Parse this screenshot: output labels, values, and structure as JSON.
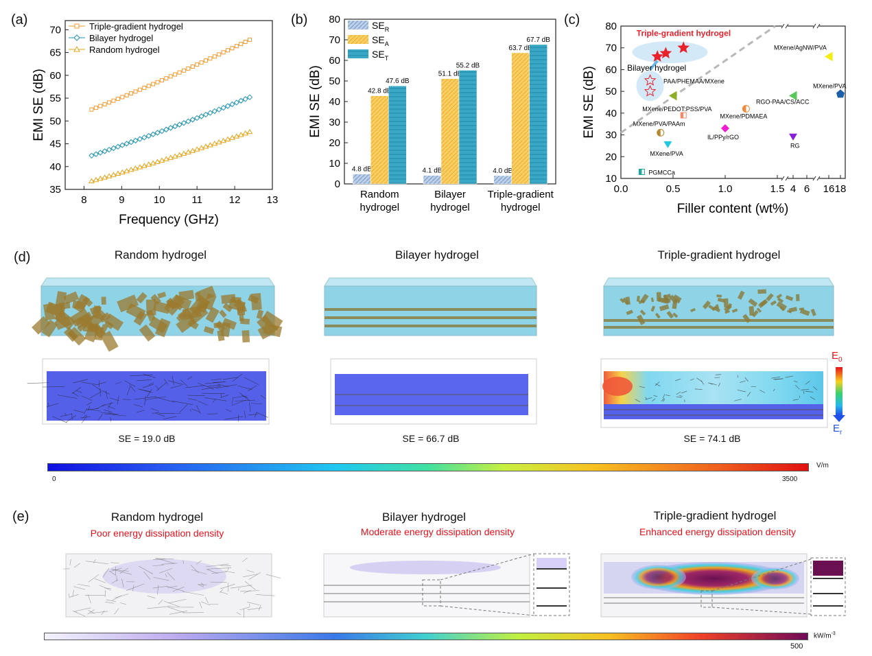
{
  "colors": {
    "triple": "#f39a2f",
    "bilayer": "#1e93ad",
    "random": "#e6a417",
    "se_r": "#7f9ec6",
    "se_a": "#f2b01e",
    "se_t": "#1f8fae",
    "hydrogel": "#8fd3e6",
    "flake": "#9b7a2e",
    "red_text": "#e8101a"
  },
  "panel_labels": {
    "a": "(a)",
    "b": "(b)",
    "c": "(c)",
    "d": "(d)",
    "e": "(e)"
  },
  "chart_data": [
    {
      "id": "a",
      "type": "line",
      "title": "",
      "xlabel": "Frequency (GHz)",
      "ylabel": "EMI SE (dB)",
      "xlim": [
        7.5,
        13
      ],
      "ylim": [
        35,
        72
      ],
      "xticks": [
        8,
        9,
        10,
        11,
        12,
        13
      ],
      "yticks": [
        35,
        40,
        45,
        50,
        55,
        60,
        65,
        70
      ],
      "legend": "top-left",
      "series": [
        {
          "name": "Triple-gradient hydrogel",
          "marker": "square",
          "color": "#f39a2f",
          "x": [
            8.2,
            12.4
          ],
          "y": [
            52.5,
            67.8
          ]
        },
        {
          "name": "Bilayer hydrogel",
          "marker": "diamond",
          "color": "#1e93ad",
          "x": [
            8.2,
            12.4
          ],
          "y": [
            42.4,
            55.2
          ]
        },
        {
          "name": "Random hydrogel",
          "marker": "triangle",
          "color": "#e6a417",
          "x": [
            8.2,
            12.4
          ],
          "y": [
            36.8,
            47.6
          ]
        }
      ]
    },
    {
      "id": "b",
      "type": "bar",
      "title": "",
      "xlabel": "",
      "ylabel": "EMI SE (dB)",
      "ylim": [
        0,
        80
      ],
      "yticks": [
        0,
        10,
        20,
        30,
        40,
        50,
        60,
        70,
        80
      ],
      "legend": "top-left",
      "categories": [
        [
          "Random",
          "hydrogel"
        ],
        [
          "Bilayer",
          "hydrogel"
        ],
        [
          "Triple-gradient",
          "hydrogel"
        ]
      ],
      "series": [
        {
          "name": "SE",
          "sub": "R",
          "values": [
            4.8,
            4.1,
            4.0
          ],
          "labels": [
            "4.8 dB",
            "4.1 dB",
            "4.0 dB"
          ]
        },
        {
          "name": "SE",
          "sub": "A",
          "values": [
            42.8,
            51.1,
            63.7
          ],
          "labels": [
            "42.8 dB",
            "51.1 dB",
            "63.7 dB"
          ]
        },
        {
          "name": "SE",
          "sub": "T",
          "values": [
            47.6,
            55.2,
            67.7
          ],
          "labels": [
            "47.6 dB",
            "55.2 dB",
            "67.7 dB"
          ]
        }
      ]
    },
    {
      "id": "c",
      "type": "scatter",
      "title": "",
      "xlabel": "Filler content (wt%)",
      "ylabel": "EMI SE (dB)",
      "ylim": [
        10,
        80
      ],
      "yticks": [
        10,
        20,
        30,
        40,
        50,
        60,
        70,
        80
      ],
      "xtick_labels": [
        "0.0",
        "0.5",
        "1.0",
        "1.5",
        "4",
        "6",
        "16",
        "18"
      ],
      "broken_x_axis": true,
      "group_labels": {
        "triple": "Triple-gradient hydrogel",
        "bilayer": "Bilayer hydrogel"
      },
      "points": [
        {
          "label": "",
          "x": 0.35,
          "y": 66,
          "marker": "star-filled",
          "color": "#e8212b",
          "group": "triple"
        },
        {
          "label": "",
          "x": 0.43,
          "y": 67.5,
          "marker": "star-filled",
          "color": "#e8212b",
          "group": "triple"
        },
        {
          "label": "",
          "x": 0.6,
          "y": 70,
          "marker": "star-filled",
          "color": "#e8212b",
          "group": "triple"
        },
        {
          "label": "",
          "x": 0.28,
          "y": 55,
          "marker": "star-open",
          "color": "#e8212b",
          "group": "bilayer"
        },
        {
          "label": "",
          "x": 0.28,
          "y": 50,
          "marker": "star-open",
          "color": "#e8212b",
          "group": "bilayer"
        },
        {
          "label": "PAA/PHEMAA/MXene",
          "x": 0.5,
          "y": 48,
          "marker": "tri-left",
          "color": "#8fae26"
        },
        {
          "label": "MXene/PEDOT:PSS/PVA",
          "x": 0.6,
          "y": 39,
          "marker": "square-half",
          "color": "#f08a6a"
        },
        {
          "label": "MXene/PDMAEA",
          "x": 1.2,
          "y": 42,
          "marker": "circle-half",
          "color": "#ef8a3a"
        },
        {
          "label": "MXene/PVA/PAAm",
          "x": 0.38,
          "y": 31,
          "marker": "circle-half",
          "color": "#b8862c"
        },
        {
          "label": "IL/PPy/rGO",
          "x": 1.0,
          "y": 33,
          "marker": "diamond",
          "color": "#ee1fd0"
        },
        {
          "label": "MXene/PVA",
          "x": 0.45,
          "y": 25.5,
          "marker": "tri-down",
          "color": "#20c8e0"
        },
        {
          "label": "PGMCCa",
          "x": 0.2,
          "y": 13,
          "marker": "square-half",
          "color": "#22a49a"
        },
        {
          "label": "MXene/AgNW/PVA",
          "x": 16,
          "y": 66,
          "marker": "tri-left",
          "color": "#f3ee10"
        },
        {
          "label": "RGO-PAA/CS/ACC",
          "x": 4,
          "y": 48,
          "marker": "tri-left",
          "color": "#5ac85a"
        },
        {
          "label": "MXene/PVA",
          "x": 18,
          "y": 49,
          "marker": "pentagon",
          "color": "#1f5faa"
        },
        {
          "label": "RG",
          "x": 4,
          "y": 29,
          "marker": "tri-down",
          "color": "#8a1fd8"
        }
      ]
    }
  ],
  "panel_d": {
    "items": [
      {
        "title": "Random hydrogel",
        "se": "SE = 19.0 dB"
      },
      {
        "title": "Bilayer hydrogel",
        "se": "SE = 66.7 dB"
      },
      {
        "title": "Triple-gradient hydrogel",
        "se": "SE = 74.1 dB"
      }
    ],
    "field_legend": {
      "top": "E",
      "top_sub": "0",
      "bottom": "E",
      "bottom_sub": "r"
    },
    "colorbar": {
      "min": "0",
      "max": "3500",
      "unit": "V/m"
    }
  },
  "panel_e": {
    "items": [
      {
        "title": "Random hydrogel",
        "subtitle": "Poor energy dissipation density"
      },
      {
        "title": "Bilayer hydrogel",
        "subtitle": "Moderate energy dissipation density"
      },
      {
        "title": "Triple-gradient hydrogel",
        "subtitle": "Enhanced energy dissipation density"
      }
    ],
    "colorbar": {
      "max": "500",
      "unit": "kW/m",
      "unit_sup": "-3"
    }
  }
}
